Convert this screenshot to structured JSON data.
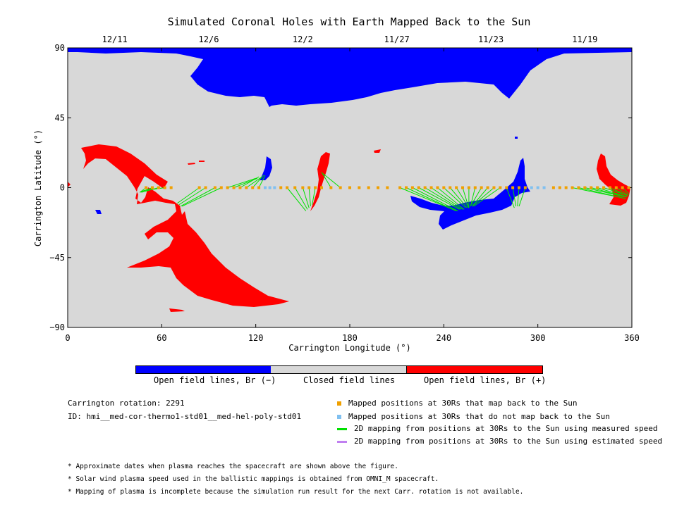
{
  "title": "Simulated Coronal Holes with Earth Mapped Back to the Sun",
  "chart_data": {
    "type": "map",
    "title": "Simulated Coronal Holes with Earth Mapped Back to the Sun",
    "xlabel": "Carrington Longitude (°)",
    "ylabel": "Carrington Latitude (°)",
    "xlim": [
      0,
      360
    ],
    "ylim": [
      -90,
      90
    ],
    "xticks": [
      0,
      60,
      120,
      180,
      240,
      300,
      360
    ],
    "yticks": [
      90,
      45,
      0,
      -45,
      -90
    ],
    "ytick_labels": [
      "90",
      "45",
      "0",
      "−45",
      "−90"
    ],
    "date_ticks": [
      {
        "label": "12/11",
        "lon": 30
      },
      {
        "label": "12/6",
        "lon": 90
      },
      {
        "label": "12/2",
        "lon": 150
      },
      {
        "label": "11/27",
        "lon": 210
      },
      {
        "label": "11/23",
        "lon": 270
      },
      {
        "label": "11/19",
        "lon": 330
      }
    ],
    "colors": {
      "open_negative": "#0000ff",
      "closed": "#d8d8d8",
      "open_positive": "#ff0000",
      "mapped": "#f0a000",
      "unmapped": "#80c0f0",
      "measured": "#00e000",
      "estimated": "#c080f0"
    },
    "mapped_points": [
      {
        "lon": 50,
        "lat": 0
      },
      {
        "lon": 54,
        "lat": 0
      },
      {
        "lon": 58,
        "lat": 0
      },
      {
        "lon": 62,
        "lat": 0
      },
      {
        "lon": 66,
        "lat": 0
      },
      {
        "lon": 84,
        "lat": 0
      },
      {
        "lon": 88,
        "lat": 0
      },
      {
        "lon": 94,
        "lat": 0
      },
      {
        "lon": 98,
        "lat": 0
      },
      {
        "lon": 102,
        "lat": 0
      },
      {
        "lon": 106,
        "lat": 0
      },
      {
        "lon": 110,
        "lat": 0
      },
      {
        "lon": 114,
        "lat": 0
      },
      {
        "lon": 118,
        "lat": 0
      },
      {
        "lon": 122,
        "lat": 0
      },
      {
        "lon": 136,
        "lat": 0
      },
      {
        "lon": 140,
        "lat": 0
      },
      {
        "lon": 145,
        "lat": 0
      },
      {
        "lon": 150,
        "lat": 0
      },
      {
        "lon": 154,
        "lat": 0
      },
      {
        "lon": 158,
        "lat": 0
      },
      {
        "lon": 162,
        "lat": 0
      },
      {
        "lon": 168,
        "lat": 0
      },
      {
        "lon": 174,
        "lat": 0
      },
      {
        "lon": 180,
        "lat": 0
      },
      {
        "lon": 186,
        "lat": 0
      },
      {
        "lon": 192,
        "lat": 0
      },
      {
        "lon": 198,
        "lat": 0
      },
      {
        "lon": 204,
        "lat": 0
      },
      {
        "lon": 212,
        "lat": 0
      },
      {
        "lon": 216,
        "lat": 0
      },
      {
        "lon": 220,
        "lat": 0
      },
      {
        "lon": 224,
        "lat": 0
      },
      {
        "lon": 228,
        "lat": 0
      },
      {
        "lon": 232,
        "lat": 0
      },
      {
        "lon": 236,
        "lat": 0
      },
      {
        "lon": 240,
        "lat": 0
      },
      {
        "lon": 244,
        "lat": 0
      },
      {
        "lon": 248,
        "lat": 0
      },
      {
        "lon": 252,
        "lat": 0
      },
      {
        "lon": 256,
        "lat": 0
      },
      {
        "lon": 260,
        "lat": 0
      },
      {
        "lon": 264,
        "lat": 0
      },
      {
        "lon": 268,
        "lat": 0
      },
      {
        "lon": 272,
        "lat": 0
      },
      {
        "lon": 276,
        "lat": 0
      },
      {
        "lon": 280,
        "lat": 0
      },
      {
        "lon": 284,
        "lat": 0
      },
      {
        "lon": 288,
        "lat": 0
      },
      {
        "lon": 292,
        "lat": 0
      },
      {
        "lon": 310,
        "lat": 0
      },
      {
        "lon": 314,
        "lat": 0
      },
      {
        "lon": 318,
        "lat": 0
      },
      {
        "lon": 322,
        "lat": 0
      },
      {
        "lon": 326,
        "lat": 0
      },
      {
        "lon": 330,
        "lat": 0
      },
      {
        "lon": 334,
        "lat": 0
      },
      {
        "lon": 338,
        "lat": 0
      },
      {
        "lon": 342,
        "lat": 0
      },
      {
        "lon": 346,
        "lat": 0
      },
      {
        "lon": 350,
        "lat": 0
      },
      {
        "lon": 354,
        "lat": 0
      },
      {
        "lon": 358,
        "lat": 0
      }
    ],
    "unmapped_points": [
      {
        "lon": 126,
        "lat": 0
      },
      {
        "lon": 129,
        "lat": 0
      },
      {
        "lon": 132,
        "lat": 0
      },
      {
        "lon": 296,
        "lat": 0
      },
      {
        "lon": 300,
        "lat": 0
      },
      {
        "lon": 304,
        "lat": 0
      }
    ],
    "mapping_lines": [
      {
        "from": [
          50,
          0
        ],
        "to": [
          46,
          -3
        ]
      },
      {
        "from": [
          54,
          0
        ],
        "to": [
          46,
          -3
        ]
      },
      {
        "from": [
          58,
          0
        ],
        "to": [
          47,
          -3
        ]
      },
      {
        "from": [
          62,
          0
        ],
        "to": [
          48,
          -2
        ]
      },
      {
        "from": [
          84,
          0
        ],
        "to": [
          70,
          -10
        ]
      },
      {
        "from": [
          88,
          0
        ],
        "to": [
          71,
          -11
        ]
      },
      {
        "from": [
          94,
          0
        ],
        "to": [
          72,
          -12
        ]
      },
      {
        "from": [
          98,
          0
        ],
        "to": [
          73,
          -12
        ]
      },
      {
        "from": [
          102,
          0
        ],
        "to": [
          120,
          6
        ]
      },
      {
        "from": [
          106,
          0
        ],
        "to": [
          121,
          6
        ]
      },
      {
        "from": [
          110,
          0
        ],
        "to": [
          122,
          7
        ]
      },
      {
        "from": [
          114,
          0
        ],
        "to": [
          124,
          7
        ]
      },
      {
        "from": [
          118,
          0
        ],
        "to": [
          125,
          8
        ]
      },
      {
        "from": [
          122,
          0
        ],
        "to": [
          126,
          8
        ]
      },
      {
        "from": [
          140,
          0
        ],
        "to": [
          152,
          -15
        ]
      },
      {
        "from": [
          145,
          0
        ],
        "to": [
          153,
          -14
        ]
      },
      {
        "from": [
          150,
          0
        ],
        "to": [
          154,
          -13
        ]
      },
      {
        "from": [
          154,
          0
        ],
        "to": [
          155,
          -12
        ]
      },
      {
        "from": [
          158,
          0
        ],
        "to": [
          156,
          -11
        ]
      },
      {
        "from": [
          168,
          0
        ],
        "to": [
          162,
          10
        ]
      },
      {
        "from": [
          174,
          0
        ],
        "to": [
          163,
          9
        ]
      },
      {
        "from": [
          212,
          0
        ],
        "to": [
          248,
          -15
        ]
      },
      {
        "from": [
          216,
          0
        ],
        "to": [
          248,
          -15
        ]
      },
      {
        "from": [
          220,
          0
        ],
        "to": [
          249,
          -15
        ]
      },
      {
        "from": [
          224,
          0
        ],
        "to": [
          250,
          -14
        ]
      },
      {
        "from": [
          228,
          0
        ],
        "to": [
          251,
          -14
        ]
      },
      {
        "from": [
          232,
          0
        ],
        "to": [
          252,
          -14
        ]
      },
      {
        "from": [
          236,
          0
        ],
        "to": [
          253,
          -14
        ]
      },
      {
        "from": [
          240,
          0
        ],
        "to": [
          254,
          -13
        ]
      },
      {
        "from": [
          244,
          0
        ],
        "to": [
          255,
          -13
        ]
      },
      {
        "from": [
          248,
          0
        ],
        "to": [
          256,
          -13
        ]
      },
      {
        "from": [
          252,
          0
        ],
        "to": [
          256,
          -13
        ]
      },
      {
        "from": [
          256,
          0
        ],
        "to": [
          256,
          -13
        ]
      },
      {
        "from": [
          260,
          0
        ],
        "to": [
          257,
          -12
        ]
      },
      {
        "from": [
          264,
          0
        ],
        "to": [
          257,
          -12
        ]
      },
      {
        "from": [
          268,
          0
        ],
        "to": [
          258,
          -12
        ]
      },
      {
        "from": [
          272,
          0
        ],
        "to": [
          258,
          -12
        ]
      },
      {
        "from": [
          276,
          0
        ],
        "to": [
          259,
          -12
        ]
      },
      {
        "from": [
          280,
          0
        ],
        "to": [
          285,
          -13
        ]
      },
      {
        "from": [
          284,
          0
        ],
        "to": [
          286,
          -12
        ]
      },
      {
        "from": [
          288,
          0
        ],
        "to": [
          287,
          -12
        ]
      },
      {
        "from": [
          292,
          0
        ],
        "to": [
          288,
          -12
        ]
      },
      {
        "from": [
          322,
          0
        ],
        "to": [
          356,
          -7
        ]
      },
      {
        "from": [
          326,
          0
        ],
        "to": [
          356,
          -7
        ]
      },
      {
        "from": [
          330,
          0
        ],
        "to": [
          356,
          -6
        ]
      },
      {
        "from": [
          334,
          0
        ],
        "to": [
          356,
          -6
        ]
      },
      {
        "from": [
          338,
          0
        ],
        "to": [
          357,
          -6
        ]
      },
      {
        "from": [
          342,
          0
        ],
        "to": [
          357,
          -5
        ]
      },
      {
        "from": [
          346,
          0
        ],
        "to": [
          357,
          -5
        ]
      },
      {
        "from": [
          350,
          0
        ],
        "to": [
          358,
          -5
        ]
      },
      {
        "from": [
          354,
          0
        ],
        "to": [
          358,
          -4
        ]
      }
    ]
  },
  "colorbar": {
    "label_negative": "Open field lines, Br (−)",
    "label_closed": "Closed field lines",
    "label_positive": "Open field lines, Br (+)"
  },
  "info": {
    "rotation": "Carrington rotation: 2291",
    "id": "ID: hmi__med-cor-thermo1-std01__med-hel-poly-std01"
  },
  "legend": {
    "mapped": "Mapped positions at 30Rs that map back to the Sun",
    "unmapped": "Mapped positions at 30Rs that do not map back to the Sun",
    "measured": "2D mapping from positions at 30Rs to the Sun using measured speed",
    "estimated": "2D mapping from positions at 30Rs to the Sun using estimated speed"
  },
  "notes": [
    "* Approximate dates when plasma reaches the spacecraft are shown above the figure.",
    "* Solar wind plasma speed used in the ballistic mappings is obtained from OMNI_M spacecraft.",
    "* Mapping of plasma is incomplete because the simulation run result for the next Carr. rotation is not available."
  ]
}
